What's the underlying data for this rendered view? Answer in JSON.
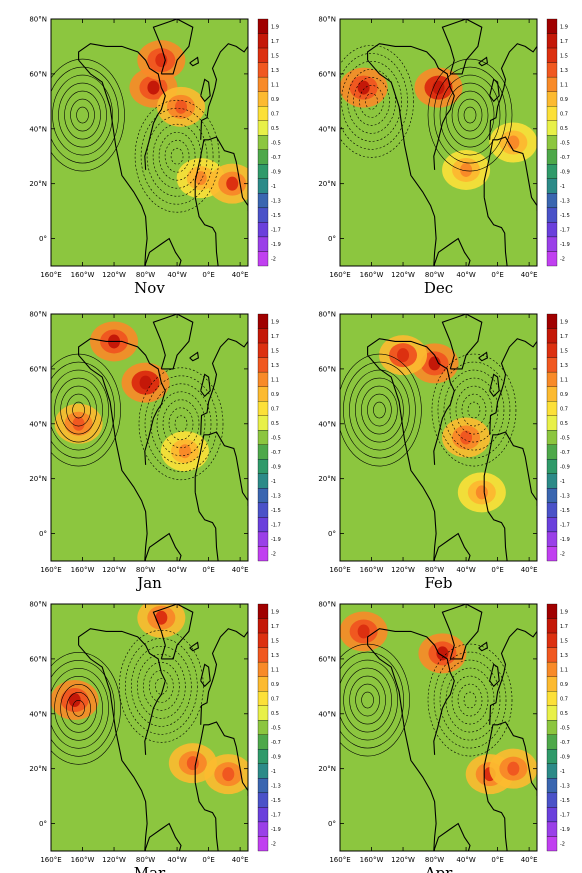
{
  "chart_data": {
    "type": "heatmap",
    "colorbar": {
      "labels": [
        "1.9",
        "1.7",
        "1.5",
        "1.3",
        "1.1",
        "0.9",
        "0.7",
        "0.5",
        "-0.5",
        "-0.7",
        "-0.9",
        "-1",
        "-1.3",
        "-1.5",
        "-1.7",
        "-1.9",
        "-2"
      ],
      "colors": [
        "#a00000",
        "#c41808",
        "#dc3010",
        "#f05820",
        "#f88a28",
        "#fcba30",
        "#fce038",
        "#e8f048",
        "#8cc63f",
        "#4ea84a",
        "#2f9a6a",
        "#2c8a88",
        "#3a66b0",
        "#4a52c8",
        "#6a40dc",
        "#9a40e8",
        "#c040f0"
      ]
    },
    "x_ticks": [
      "160°E",
      "160°W",
      "120°W",
      "80°W",
      "40°W",
      "0°E",
      "40°E"
    ],
    "y_ticks": [
      "80°N",
      "60°N",
      "40°N",
      "20°N",
      "0°"
    ],
    "panels": [
      {
        "title": "Nov",
        "hotspots": [
          [
            -70,
            55,
            1.6
          ],
          [
            -35,
            48,
            1.2
          ],
          [
            -10,
            22,
            1.0
          ],
          [
            -60,
            65,
            1.5
          ],
          [
            30,
            20,
            1.3
          ]
        ],
        "highs": [
          [
            -160,
            45
          ]
        ],
        "lows": [
          [
            -40,
            30
          ]
        ]
      },
      {
        "title": "Dec",
        "hotspots": [
          [
            -75,
            55,
            1.7
          ],
          [
            -40,
            25,
            1.0
          ],
          [
            -170,
            55,
            1.6
          ],
          [
            20,
            35,
            1.0
          ]
        ],
        "highs": [
          [
            -35,
            45
          ]
        ],
        "lows": [
          [
            -160,
            50
          ]
        ]
      },
      {
        "title": "Jan",
        "hotspots": [
          [
            -80,
            55,
            1.7
          ],
          [
            -165,
            40,
            1.2
          ],
          [
            -30,
            30,
            1.0
          ],
          [
            -120,
            70,
            1.6
          ]
        ],
        "highs": [
          [
            -165,
            45
          ]
        ],
        "lows": [
          [
            -35,
            40
          ]
        ]
      },
      {
        "title": "Feb",
        "hotspots": [
          [
            -80,
            62,
            1.6
          ],
          [
            -40,
            35,
            1.1
          ],
          [
            -20,
            15,
            0.9
          ],
          [
            -120,
            65,
            1.4
          ]
        ],
        "highs": [
          [
            -150,
            45
          ]
        ],
        "lows": [
          [
            -30,
            45
          ]
        ]
      },
      {
        "title": "Mar",
        "hotspots": [
          [
            -170,
            45,
            1.6
          ],
          [
            -20,
            22,
            1.2
          ],
          [
            25,
            18,
            1.1
          ],
          [
            -60,
            75,
            1.3
          ]
        ],
        "highs": [
          [
            -165,
            42
          ]
        ],
        "lows": [
          [
            -60,
            50
          ]
        ]
      },
      {
        "title": "Apr",
        "hotspots": [
          [
            -70,
            62,
            1.6
          ],
          [
            -10,
            18,
            1.3
          ],
          [
            20,
            20,
            1.2
          ],
          [
            -170,
            70,
            1.5
          ]
        ],
        "highs": [
          [
            -165,
            45
          ]
        ],
        "lows": [
          [
            -35,
            45
          ]
        ]
      }
    ]
  }
}
